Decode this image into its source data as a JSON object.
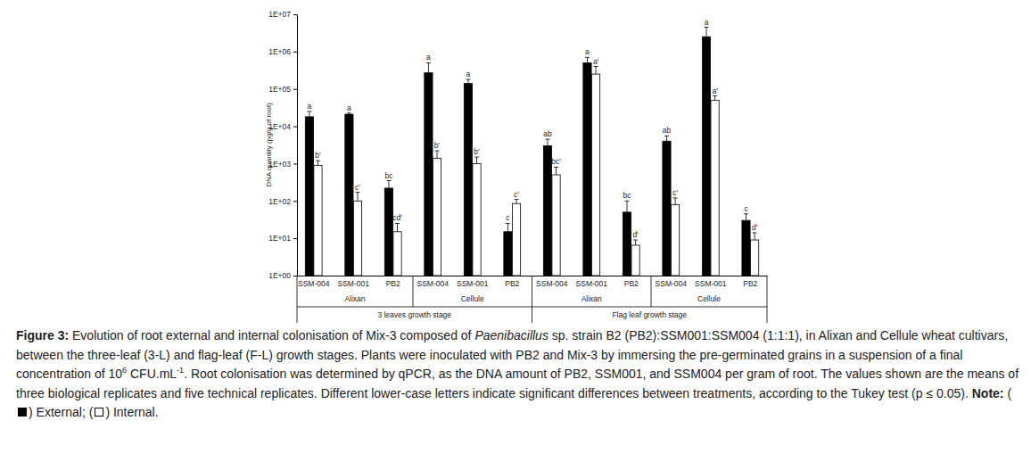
{
  "chart_data": {
    "type": "bar",
    "log": "y",
    "grid": false,
    "y_label": "DNA quantity (pg/g of root)",
    "ylim": [
      1,
      10000000
    ],
    "yticks": [
      {
        "value": 1,
        "label": "1E+00"
      },
      {
        "value": 10,
        "label": "1E+01"
      },
      {
        "value": 100,
        "label": "1E+02"
      },
      {
        "value": 1000,
        "label": "1E+03"
      },
      {
        "value": 10000,
        "label": "1E+04"
      },
      {
        "value": 100000,
        "label": "1E+05"
      },
      {
        "value": 1000000,
        "label": "1E+06"
      },
      {
        "value": 10000000,
        "label": "1E+07"
      }
    ],
    "categories": [
      "SSM-004",
      "SSM-001",
      "PB2",
      "SSM-004",
      "SSM-001",
      "PB2",
      "SSM-004",
      "SSM-001",
      "PB2",
      "SSM-004",
      "SSM-001",
      "PB2"
    ],
    "cultivar_groups": [
      {
        "label": "Alixan",
        "size": 3
      },
      {
        "label": "Cellule",
        "size": 3
      },
      {
        "label": "Alixan",
        "size": 3
      },
      {
        "label": "Cellule",
        "size": 3
      }
    ],
    "stage_groups": [
      {
        "label": "3 leaves growth stage",
        "size": 6
      },
      {
        "label": "Flag leaf growth stage",
        "size": 6
      }
    ],
    "series": [
      {
        "name": "External",
        "color": "#000000",
        "values": [
          18000,
          21000,
          220,
          270000,
          140000,
          15,
          3000,
          500000,
          50,
          4000,
          2500000,
          30
        ],
        "errors": [
          7000,
          1500,
          130,
          230000,
          40000,
          10,
          1500,
          200000,
          50,
          1500,
          2000000,
          15
        ],
        "letters": [
          "a",
          "a",
          "bc",
          "a",
          "a",
          "c",
          "ab",
          "a",
          "bc",
          "ab",
          "a",
          "c"
        ]
      },
      {
        "name": "Internal",
        "color": "#ffffff",
        "values": [
          900,
          100,
          15,
          1400,
          1000,
          85,
          500,
          250000,
          6.5,
          80,
          50000,
          9
        ],
        "errors": [
          300,
          70,
          10,
          800,
          500,
          25,
          300,
          150000,
          2.5,
          40,
          15000,
          5
        ],
        "letters": [
          "b'",
          "c'",
          "cd'",
          "b'",
          "b'",
          "c'",
          "bc'",
          "a'",
          "d'",
          "c'",
          "a'",
          "d'"
        ]
      }
    ],
    "caption": {
      "label": "Figure 3:",
      "runs": [
        " Evolution of root external and internal colonisation of Mix-3 composed of ",
        {
          "i": "Paenibacillus"
        },
        " sp. strain B2 (PB2):SSM001:SSM004 (1:1:1), in Alixan and Cellule wheat cultivars, between the three-leaf (3-L) and flag-leaf (F-L) growth stages. Plants were inoculated with PB2 and Mix-3 by immersing the pre-germinated grains in a suspension of a final concentration of 10",
        {
          "sup": "6"
        },
        " CFU.mL",
        {
          "sup": "-1"
        },
        ". Root colonisation was determined by qPCR, as the DNA amount of PB2, SSM001, and SSM004 per gram of root. The values shown are the means of three biological replicates and five technical replicates. Different lower-case letters indicate significant differences between treatments, according to the Tukey test (p ≤ 0.05). "
      ],
      "note": {
        "label": "Note:",
        "open": "(",
        "close": ")",
        "separator": ";",
        "end": "."
      }
    }
  }
}
